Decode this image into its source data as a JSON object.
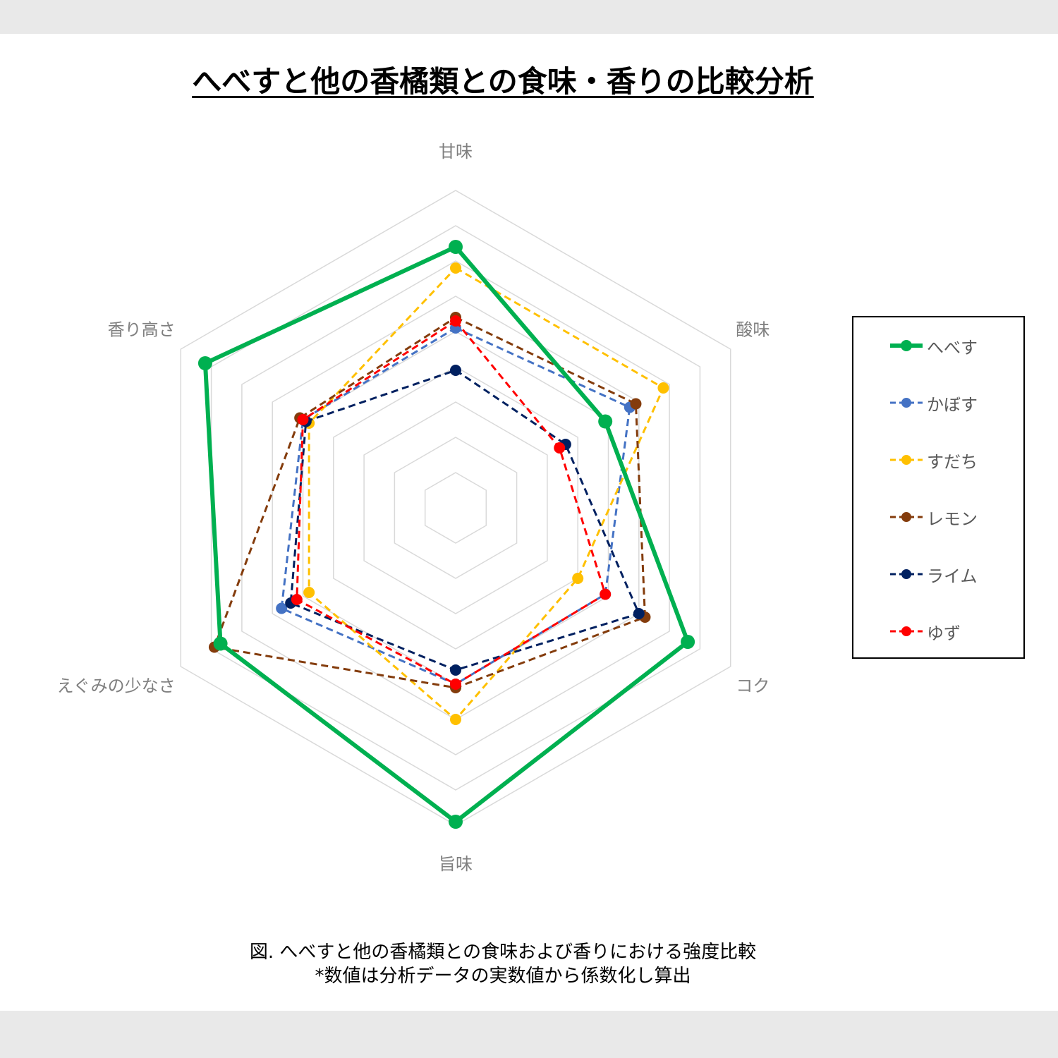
{
  "title": "へべすと他の香橘類との食味・香りの比較分析",
  "caption": {
    "line1": "図. へべすと他の香橘類との食味および香りにおける強度比較",
    "line2": "*数値は分析データの実数値から係数化し算出"
  },
  "chart_data": {
    "type": "radar",
    "axes": [
      "甘味",
      "酸味",
      "コク",
      "旨味",
      "えぐみの少なさ",
      "香り高さ"
    ],
    "rmax": 9,
    "rings": 9,
    "grid": true,
    "legend_position": "right",
    "series": [
      {
        "name": "へべす",
        "color": "#00b050",
        "dashed": false,
        "values": [
          7.4,
          4.9,
          7.6,
          8.9,
          7.7,
          8.2
        ]
      },
      {
        "name": "かぼす",
        "color": "#4472c4",
        "dashed": true,
        "values": [
          5.1,
          5.7,
          4.9,
          5.0,
          5.7,
          5.0
        ]
      },
      {
        "name": "すだち",
        "color": "#ffc000",
        "dashed": true,
        "values": [
          6.8,
          6.8,
          4.0,
          6.0,
          4.8,
          4.8
        ]
      },
      {
        "name": "レモン",
        "color": "#843c0c",
        "dashed": true,
        "values": [
          5.4,
          5.9,
          6.2,
          5.1,
          7.9,
          5.1
        ]
      },
      {
        "name": "ライム",
        "color": "#002060",
        "dashed": true,
        "values": [
          3.9,
          3.6,
          6.0,
          4.6,
          5.4,
          4.9
        ]
      },
      {
        "name": "ゆず",
        "color": "#ff0000",
        "dashed": true,
        "values": [
          5.3,
          3.4,
          4.9,
          5.0,
          5.2,
          5.0
        ]
      }
    ]
  }
}
